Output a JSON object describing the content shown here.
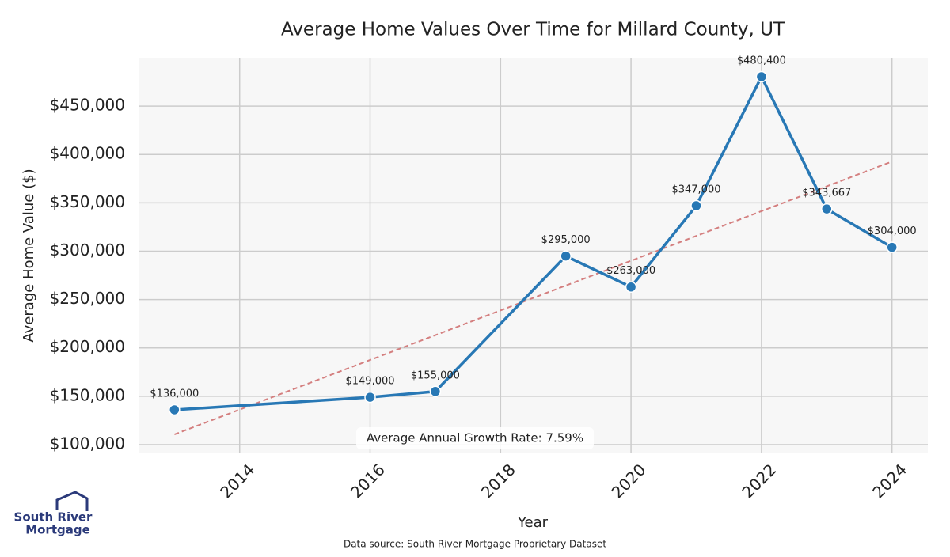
{
  "chart_data": {
    "type": "line",
    "title": "Average Home Values Over Time for Millard County, UT",
    "x_label": "Year",
    "y_label": "Average Home Value ($)",
    "x": [
      2013,
      2016,
      2017,
      2019,
      2020,
      2021,
      2022,
      2023,
      2024
    ],
    "series": [
      {
        "name": "Average Home Value",
        "color": "#2878b5",
        "values": [
          136000,
          149000,
          155000,
          295000,
          263000,
          347000,
          480400,
          343667,
          304000
        ],
        "value_labels": [
          "$136,000",
          "$149,000",
          "$155,000",
          "$295,000",
          "$263,000",
          "$347,000",
          "$480,400",
          "$343,667",
          "$304,000"
        ]
      }
    ],
    "trend": {
      "x": [
        2013,
        2024
      ],
      "values": [
        110600,
        392700
      ],
      "color": "#d47f7f"
    },
    "annotation": "Average Annual Growth Rate: 7.59%",
    "xlim": [
      2012.45,
      2024.55
    ],
    "ylim": [
      91000,
      500000
    ],
    "xticks": [
      2014,
      2016,
      2018,
      2020,
      2022,
      2024
    ],
    "yticks": [
      {
        "value": 100000,
        "label": "$100,000"
      },
      {
        "value": 150000,
        "label": "$150,000"
      },
      {
        "value": 200000,
        "label": "$200,000"
      },
      {
        "value": 250000,
        "label": "$250,000"
      },
      {
        "value": 300000,
        "label": "$300,000"
      },
      {
        "value": 350000,
        "label": "$350,000"
      },
      {
        "value": 400000,
        "label": "$400,000"
      },
      {
        "value": 450000,
        "label": "$450,000"
      }
    ],
    "grid": true,
    "source": "Data source: South River Mortgage Proprietary Dataset",
    "logo": [
      "South River",
      "Mortgage"
    ]
  }
}
